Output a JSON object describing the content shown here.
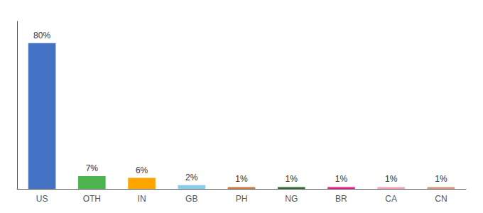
{
  "chart_data": {
    "type": "bar",
    "categories": [
      "US",
      "OTH",
      "IN",
      "GB",
      "PH",
      "NG",
      "BR",
      "CA",
      "CN"
    ],
    "values": [
      80,
      7,
      6,
      2,
      1,
      1,
      1,
      1,
      1
    ],
    "value_labels": [
      "80%",
      "7%",
      "6%",
      "2%",
      "1%",
      "1%",
      "1%",
      "1%",
      "1%"
    ],
    "data_labels": true,
    "colors": [
      "#4472c4",
      "#4db34d",
      "#ffa500",
      "#87ceeb",
      "#c87941",
      "#2d6e2d",
      "#e91e8c",
      "#f4a0b0",
      "#d4957a"
    ],
    "ylim": [
      0,
      92
    ],
    "tick_labels": "x",
    "grid": false
  }
}
